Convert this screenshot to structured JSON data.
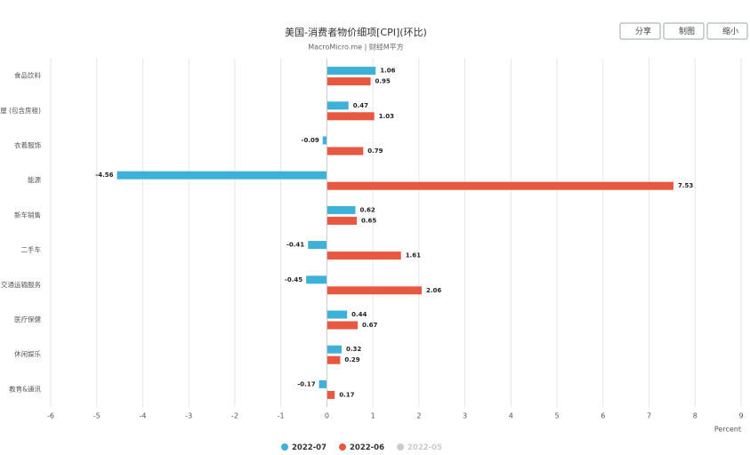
{
  "chart_data": {
    "type": "hbar",
    "title": "美国-消费者物价细项[CPI](环比)",
    "subtitle": "MacroMicro.me | 财经M平方",
    "buttons": [
      "分享",
      "制图",
      "缩小"
    ],
    "categories": [
      "食品饮料",
      "住屋 (包含房租)",
      "衣着服饰",
      "能源",
      "新车销售",
      "二手车",
      "交通运输服务",
      "医疗保健",
      "休闲娱乐",
      "教育&通讯"
    ],
    "series": [
      {
        "name": "2022-07",
        "color": "#3eb1d8",
        "values": [
          1.06,
          0.47,
          -0.09,
          -4.56,
          0.62,
          -0.41,
          -0.45,
          0.44,
          0.32,
          -0.17
        ]
      },
      {
        "name": "2022-06",
        "color": "#e8573f",
        "values": [
          0.95,
          1.03,
          0.79,
          7.53,
          0.65,
          1.61,
          2.06,
          0.67,
          0.29,
          0.17
        ]
      }
    ],
    "hidden_series": [
      {
        "name": "2022-05",
        "color": "#cccccc"
      }
    ],
    "xlabel": "Percent",
    "xlim": [
      -6,
      9
    ],
    "xticks": [
      -6,
      -5,
      -4,
      -3,
      -2,
      -1,
      0,
      1,
      2,
      3,
      4,
      5,
      6,
      7,
      8,
      9
    ],
    "grid": true
  }
}
